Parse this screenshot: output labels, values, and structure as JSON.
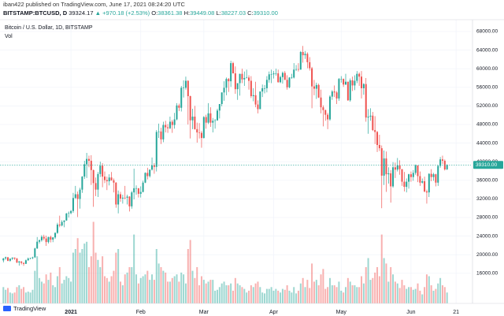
{
  "header": {
    "published": "iban422 published on TradingView.com, June 17, 2021 08:24:20 UTC",
    "symbol": "BITSTAMP:BTCUSD, D",
    "price": "39324.17",
    "change": "▲ +970.18 (+2.53%)",
    "ohlc": [
      {
        "label": "O:",
        "value": "38361.38"
      },
      {
        "label": "H:",
        "value": "39449.08"
      },
      {
        "label": "L:",
        "value": "38227.03"
      },
      {
        "label": "C:",
        "value": "39310.00"
      }
    ]
  },
  "footer": {
    "logo": "TradingView"
  },
  "chart_data": {
    "type": "candlestick",
    "title": "Bitcoin / U.S. Dollar, 1D, BITSTAMP",
    "volume_label": "Vol",
    "up_color": "#26a69a",
    "down_color": "#ef5350",
    "grid": true,
    "open": [
      18780,
      19200,
      19440,
      18700,
      19150,
      19370,
      19170,
      18320,
      18550,
      18250,
      18040,
      18800,
      19170,
      19270,
      19440,
      21350,
      22800,
      23100,
      23850,
      23480,
      22720,
      23820,
      23250,
      23720,
      24690,
      26480,
      26280,
      27040,
      27360,
      28880,
      28950,
      29400,
      32200,
      33000,
      31990,
      33990,
      36800,
      39450,
      40600,
      40200,
      38200,
      35400,
      34000,
      37350,
      39150,
      36800,
      36050,
      35800,
      36600,
      36000,
      35500,
      30800,
      33000,
      32080,
      32260,
      32250,
      32500,
      30400,
      33400,
      34300,
      34300,
      33100,
      33500,
      35500,
      37600,
      36900,
      38300,
      39200,
      38900,
      46400,
      46500,
      44800,
      47900,
      47400,
      47200,
      48600,
      47900,
      49100,
      52100,
      51600,
      55900,
      55900,
      57400,
      54100,
      48900,
      49700,
      47000,
      46300,
      46200,
      45100,
      49600,
      48400,
      50400,
      48400,
      48800,
      48900,
      51000,
      52400,
      54900,
      55900,
      57800,
      57300,
      61200,
      59000,
      55600,
      56900,
      58900,
      57700,
      58000,
      58100,
      57400,
      54100,
      54300,
      52300,
      51300,
      55100,
      55800,
      55800,
      57600,
      58800,
      58800,
      59000,
      59000,
      57100,
      58200,
      59100,
      57600,
      56000,
      58100,
      58100,
      59800,
      59900,
      59800,
      63600,
      62900,
      63200,
      61400,
      60100,
      56200,
      55700,
      56500,
      53800,
      51700,
      51100,
      50100,
      49100,
      54000,
      55100,
      54900,
      53600,
      57800,
      57800,
      56600,
      57200,
      53200,
      57500,
      56400,
      57400,
      58900,
      58300,
      55800,
      56700,
      49500,
      49700,
      49900,
      46800,
      46400,
      43600,
      42900,
      37000,
      40700,
      37300,
      37500,
      34700,
      38800,
      38300,
      39200,
      38400,
      35700,
      34600,
      35700,
      37300,
      36700,
      37600,
      39200,
      36900,
      35500,
      35800,
      33600,
      33400,
      37400,
      36700,
      37300,
      35500,
      39100,
      40500,
      40200,
      38361.38
    ],
    "high": [
      19300,
      19600,
      19500,
      19200,
      19420,
      19400,
      19300,
      18650,
      18600,
      18300,
      18950,
      19400,
      19350,
      19570,
      21500,
      23800,
      23300,
      24200,
      24300,
      24100,
      23850,
      24100,
      23800,
      24800,
      26850,
      28400,
      27400,
      27400,
      28950,
      29300,
      29600,
      33300,
      34800,
      33600,
      34400,
      36900,
      40200,
      41900,
      41300,
      41400,
      38300,
      36600,
      37800,
      40000,
      39700,
      37900,
      36800,
      37300,
      37800,
      36400,
      35600,
      33800,
      33500,
      32900,
      34800,
      32900,
      32600,
      33700,
      38500,
      34900,
      34300,
      34700,
      35900,
      37700,
      38700,
      38300,
      40900,
      39700,
      46800,
      48200,
      47300,
      48600,
      48800,
      48100,
      49700,
      49000,
      50500,
      52600,
      52500,
      56300,
      57500,
      58300,
      57500,
      54200,
      51400,
      52000,
      48400,
      48300,
      46600,
      49800,
      50100,
      52600,
      51700,
      49400,
      49200,
      51400,
      52400,
      54900,
      57300,
      58100,
      58000,
      61700,
      61500,
      60500,
      56900,
      58900,
      60000,
      59400,
      59800,
      58600,
      58400,
      55800,
      57200,
      53200,
      55100,
      56600,
      56500,
      58400,
      59400,
      59800,
      59500,
      60000,
      59800,
      58500,
      59400,
      59500,
      58600,
      58200,
      58900,
      61200,
      60800,
      61200,
      63800,
      64900,
      63800,
      63500,
      62500,
      60400,
      57600,
      57000,
      56800,
      55500,
      52100,
      51200,
      50500,
      54300,
      55400,
      56400,
      55200,
      58000,
      58400,
      57900,
      58900,
      57200,
      57900,
      58300,
      58600,
      59500,
      59200,
      59500,
      56900,
      58000,
      51300,
      51500,
      50700,
      49800,
      46600,
      45800,
      43500,
      42400,
      42200,
      38800,
      38200,
      39900,
      39800,
      40800,
      40300,
      38400,
      37800,
      36400,
      37400,
      37900,
      38200,
      39400,
      39200,
      37900,
      36400,
      36800,
      34000,
      37500,
      38400,
      37600,
      37400,
      39300,
      41000,
      41300,
      40500,
      39449.08
    ],
    "low": [
      18350,
      18900,
      18600,
      18500,
      18860,
      18900,
      18200,
      17650,
      17900,
      17600,
      18000,
      18700,
      19000,
      19050,
      19300,
      21250,
      22400,
      22800,
      23100,
      21900,
      22400,
      22650,
      22700,
      23400,
      24500,
      25900,
      26100,
      25900,
      27300,
      28000,
      28700,
      29000,
      32000,
      28100,
      29900,
      33300,
      36300,
      36500,
      38800,
      35000,
      30300,
      32600,
      32400,
      36700,
      34500,
      35400,
      33900,
      34900,
      35900,
      33400,
      30100,
      28900,
      31400,
      31000,
      31900,
      30800,
      29300,
      29900,
      31900,
      32900,
      32300,
      32300,
      33400,
      35400,
      36200,
      36600,
      38100,
      37400,
      37900,
      45100,
      43800,
      44200,
      46300,
      46200,
      47000,
      46200,
      47100,
      48900,
      50900,
      50800,
      53800,
      55500,
      48000,
      45000,
      47000,
      46900,
      44100,
      45000,
      43000,
      45000,
      47100,
      48100,
      47500,
      46300,
      47100,
      48800,
      49300,
      51900,
      53100,
      54300,
      55000,
      56100,
      59000,
      54600,
      53300,
      54200,
      56900,
      56300,
      57900,
      55500,
      53700,
      53000,
      51700,
      50400,
      51300,
      53900,
      54700,
      54900,
      57000,
      56900,
      57900,
      58500,
      57000,
      56900,
      56800,
      57600,
      55500,
      55800,
      57800,
      57900,
      59500,
      59400,
      59800,
      61300,
      62100,
      60100,
      59600,
      51500,
      54300,
      53500,
      53700,
      50400,
      47600,
      48800,
      47000,
      48800,
      53300,
      53900,
      52400,
      53100,
      57000,
      56100,
      56500,
      53100,
      52900,
      55200,
      55400,
      56900,
      56300,
      53600,
      54400,
      48600,
      46000,
      48800,
      46600,
      43800,
      42100,
      42300,
      30000,
      35000,
      33500,
      35300,
      31200,
      34400,
      36500,
      37900,
      37200,
      34800,
      33600,
      33400,
      34200,
      35700,
      35900,
      37200,
      35600,
      34800,
      35300,
      33400,
      31000,
      32400,
      35800,
      35900,
      34700,
      34800,
      38700,
      39500,
      38100,
      38227.03
    ],
    "close": [
      19200,
      19440,
      18700,
      19150,
      19370,
      19170,
      18320,
      18550,
      18250,
      18040,
      18800,
      19170,
      19270,
      19440,
      21350,
      22800,
      23100,
      23850,
      23480,
      22720,
      23820,
      23250,
      23720,
      24690,
      26480,
      26280,
      27040,
      27360,
      28880,
      28950,
      29400,
      32200,
      33000,
      31990,
      33990,
      36800,
      39450,
      40600,
      40200,
      38200,
      35400,
      34000,
      37350,
      39150,
      36800,
      36050,
      35800,
      36600,
      36000,
      35500,
      30800,
      33000,
      32080,
      32260,
      32250,
      32500,
      30400,
      33400,
      34300,
      34300,
      33100,
      33500,
      35500,
      37600,
      36900,
      38300,
      39200,
      38900,
      46400,
      46500,
      44800,
      47900,
      47400,
      47200,
      48600,
      47900,
      49100,
      52100,
      51600,
      55900,
      55900,
      57400,
      54100,
      48900,
      49700,
      47000,
      46300,
      46200,
      45100,
      49600,
      48400,
      50400,
      48400,
      48800,
      48900,
      51000,
      52400,
      54900,
      55900,
      57800,
      57300,
      61200,
      59000,
      55600,
      56900,
      58900,
      57700,
      58000,
      58100,
      57400,
      54100,
      54300,
      52300,
      51300,
      55100,
      55800,
      55800,
      57600,
      58800,
      58800,
      59000,
      59000,
      57100,
      58200,
      59100,
      57600,
      56000,
      58100,
      58100,
      59800,
      59900,
      59800,
      63600,
      62900,
      63200,
      61400,
      60100,
      56200,
      55700,
      56500,
      53800,
      51700,
      51100,
      50100,
      49100,
      54000,
      55100,
      54900,
      53600,
      57800,
      57800,
      56600,
      57200,
      53200,
      57500,
      56400,
      57400,
      58900,
      58300,
      55800,
      56700,
      49500,
      49700,
      49900,
      46800,
      46400,
      43600,
      42900,
      37000,
      40700,
      37300,
      37500,
      34700,
      38800,
      38300,
      39200,
      38400,
      35700,
      34600,
      35700,
      37300,
      36700,
      37600,
      39200,
      36900,
      35500,
      35800,
      33600,
      33400,
      37400,
      36700,
      37300,
      35500,
      39100,
      40500,
      40200,
      38340,
      39310
    ],
    "volume": [
      9000,
      7500,
      8500,
      6000,
      5500,
      6000,
      9000,
      10000,
      8000,
      9000,
      6000,
      6500,
      6000,
      7500,
      18000,
      26000,
      14000,
      12000,
      11000,
      16000,
      13000,
      17000,
      10000,
      9000,
      15000,
      20000,
      11000,
      13000,
      15000,
      14000,
      12000,
      28000,
      30000,
      36000,
      28000,
      30000,
      33000,
      34000,
      20000,
      26000,
      45000,
      28000,
      24000,
      20000,
      26000,
      15000,
      14000,
      12000,
      15000,
      18000,
      28000,
      30000,
      12000,
      10000,
      16000,
      17000,
      20000,
      20000,
      38000,
      16000,
      11000,
      14000,
      15000,
      16000,
      18000,
      13000,
      16000,
      13000,
      30000,
      22000,
      20000,
      18000,
      17000,
      12000,
      12000,
      14000,
      15000,
      16000,
      12000,
      17000,
      16000,
      11000,
      30000,
      35000,
      18000,
      14000,
      20000,
      10000,
      15000,
      13000,
      11000,
      12000,
      13000,
      13000,
      7000,
      7500,
      9000,
      11000,
      12000,
      10000,
      10000,
      11000,
      7000,
      14000,
      11000,
      10000,
      9000,
      8000,
      6000,
      7000,
      10000,
      9000,
      11000,
      12000,
      9000,
      6000,
      5500,
      8000,
      8000,
      9000,
      7000,
      8000,
      7000,
      6000,
      8000,
      7500,
      10000,
      7000,
      6000,
      9000,
      5500,
      7000,
      11000,
      14000,
      9000,
      13000,
      8500,
      22000,
      12000,
      13000,
      10000,
      16000,
      19000,
      8000,
      9000,
      14000,
      10000,
      10000,
      9000,
      12000,
      7000,
      6000,
      9000,
      14000,
      12000,
      10000,
      10000,
      9000,
      9000,
      15000,
      11000,
      20000,
      25000,
      13000,
      14000,
      17000,
      20000,
      15000,
      38000,
      25000,
      22000,
      12000,
      20000,
      16000,
      12000,
      11000,
      8500,
      13000,
      10000,
      8000,
      9000,
      9000,
      7500,
      8000,
      11000,
      7000,
      5000,
      9000,
      16000,
      15000,
      10000,
      7000,
      8000,
      11000,
      14000,
      10000,
      9000,
      6000
    ],
    "ylim": [
      9530,
      70540
    ],
    "yticks": [
      {
        "value": 16000,
        "label": "16000.00"
      },
      {
        "value": 20000,
        "label": "20000.00"
      },
      {
        "value": 24000,
        "label": "24000.00"
      },
      {
        "value": 28000,
        "label": "28000.00"
      },
      {
        "value": 32000,
        "label": "32000.00"
      },
      {
        "value": 36000,
        "label": "36000.00"
      },
      {
        "value": 40000,
        "label": "40000.00"
      },
      {
        "value": 44000,
        "label": "44000.00"
      },
      {
        "value": 48000,
        "label": "48000.00"
      },
      {
        "value": 52000,
        "label": "52000.00"
      },
      {
        "value": 56000,
        "label": "56000.00"
      },
      {
        "value": 60000,
        "label": "60000.00"
      },
      {
        "value": 64000,
        "label": "64000.00"
      },
      {
        "value": 68000,
        "label": "68000.00"
      }
    ],
    "xlim": [
      -1.5,
      207.6
    ],
    "xticks": [
      {
        "value": 30,
        "label": "2021"
      },
      {
        "value": 61,
        "label": "Feb"
      },
      {
        "value": 89,
        "label": "Mar"
      },
      {
        "value": 120,
        "label": "Apr"
      },
      {
        "value": 150,
        "label": "May"
      },
      {
        "value": 181,
        "label": "Jun"
      },
      {
        "value": 201,
        "label": "21"
      }
    ],
    "vlim": [
      0,
      50000
    ],
    "last_price": {
      "value": 39310,
      "label": "39310.00"
    }
  }
}
